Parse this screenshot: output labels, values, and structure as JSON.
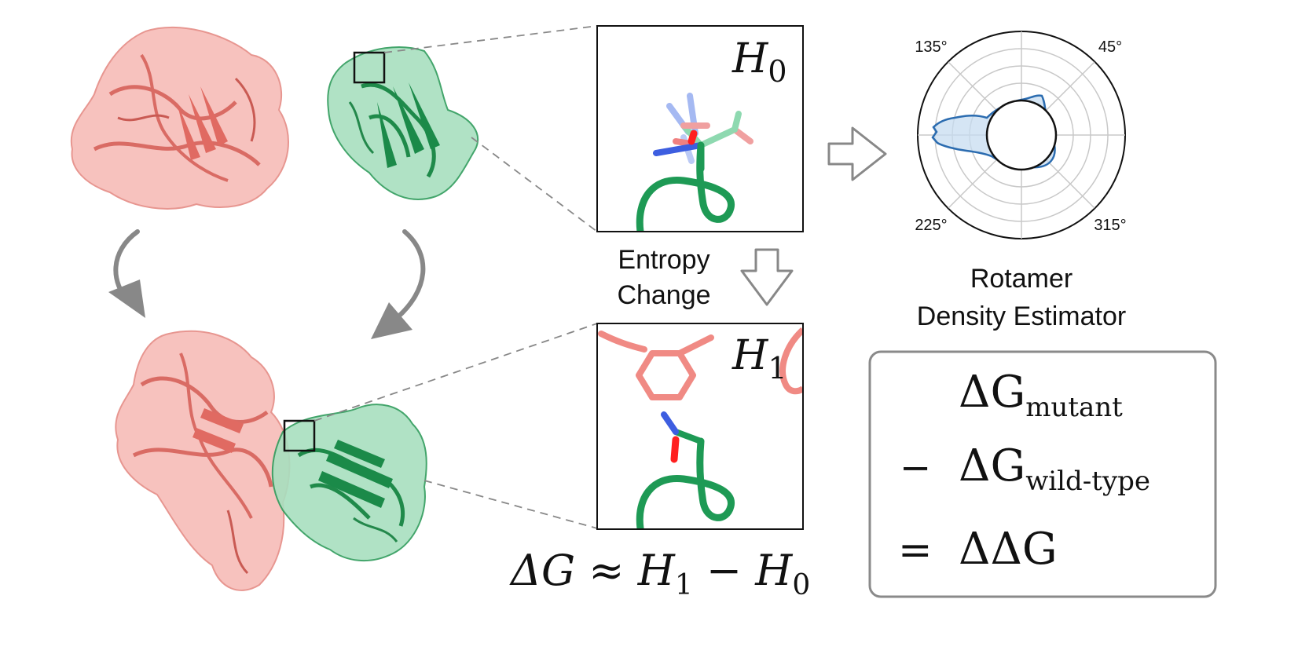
{
  "panels": {
    "unbound_label": "H",
    "unbound_subscript": "0",
    "bound_label": "H",
    "bound_subscript": "1"
  },
  "labels": {
    "entropy_line1": "Entropy",
    "entropy_line2": "Change",
    "rde_line1": "Rotamer",
    "rde_line2": "Density Estimator"
  },
  "equation": {
    "delta_g_prefix": "ΔG ≈ H",
    "h1_sub": "1",
    "minus_h": " − H",
    "h0_sub": "0"
  },
  "result_box": {
    "line1_main": "ΔG",
    "line1_sub": "mutant",
    "line2_op": "−",
    "line2_main": "ΔG",
    "line2_sub": "wild-type",
    "line3_op": "=",
    "line3_main": "ΔΔG"
  },
  "polar": {
    "tick_labels": [
      "135°",
      "45°",
      "225°",
      "315°"
    ]
  },
  "colors": {
    "receptor": "#f08a84",
    "binder": "#2aa35a",
    "arrow_gray": "#888888",
    "density": "#2b6cb0"
  }
}
